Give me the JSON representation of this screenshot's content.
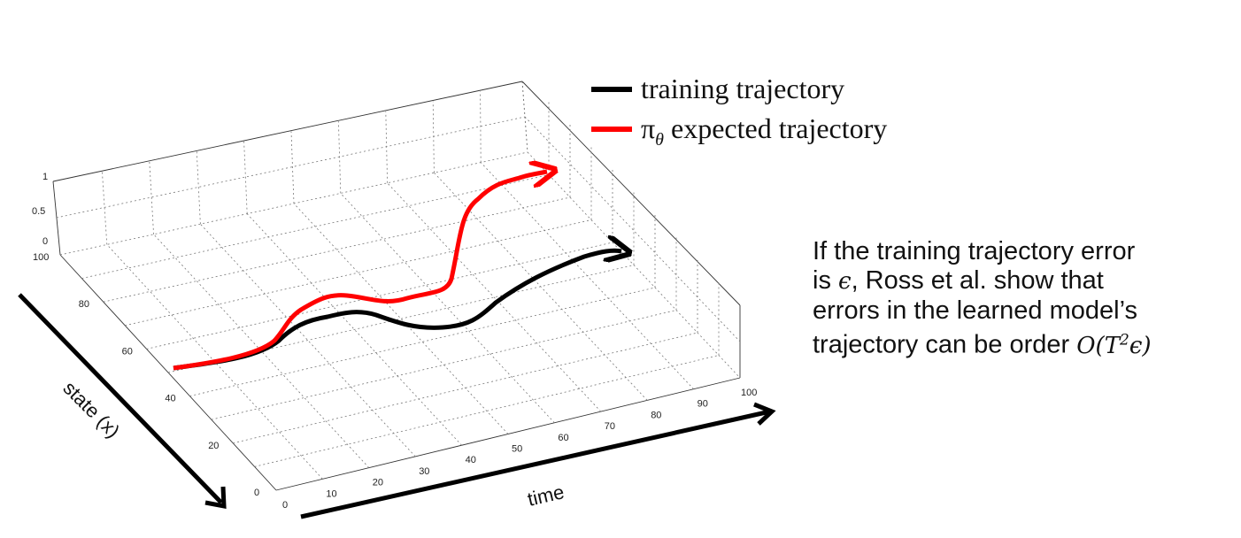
{
  "legend": [
    {
      "label": "training trajectory",
      "color": "#000000"
    },
    {
      "label_prefix": "π",
      "label_sub": "θ",
      "label_rest": " expected trajectory",
      "color": "#ff0000"
    }
  ],
  "axes": {
    "time_label": "time",
    "state_label": "state (x)",
    "time_ticks": [
      "0",
      "10",
      "20",
      "30",
      "40",
      "50",
      "60",
      "70",
      "80",
      "90",
      "100"
    ],
    "state_ticks": [
      "0",
      "20",
      "40",
      "60",
      "80",
      "100"
    ],
    "vertical_ticks": [
      "0",
      "0.5",
      "1"
    ]
  },
  "caption": {
    "line1": "If the training trajectory error",
    "line2_pre": "is ",
    "epsilon": "ϵ",
    "line2_post": ", Ross et al. show that",
    "line3": "errors in the learned model’s",
    "line4_pre": "trajectory can be order ",
    "order_O": "O",
    "order_open": "(",
    "order_T": "T",
    "order_exp": "2",
    "order_eps": "ϵ",
    "order_close": ")"
  },
  "colors": {
    "training": "#000000",
    "expected": "#ff0000",
    "grid": "#555555"
  }
}
